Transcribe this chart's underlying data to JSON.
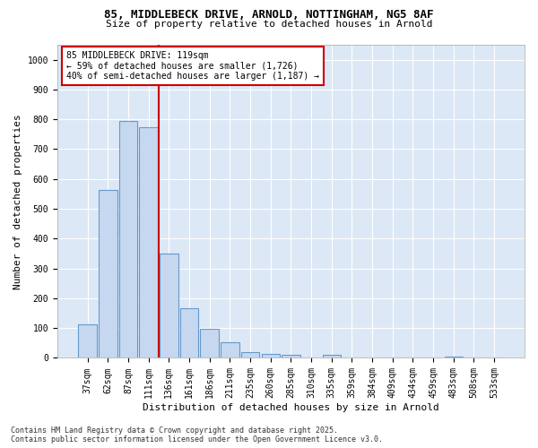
{
  "title_line1": "85, MIDDLEBECK DRIVE, ARNOLD, NOTTINGHAM, NG5 8AF",
  "title_line2": "Size of property relative to detached houses in Arnold",
  "xlabel": "Distribution of detached houses by size in Arnold",
  "ylabel": "Number of detached properties",
  "categories": [
    "37sqm",
    "62sqm",
    "87sqm",
    "111sqm",
    "136sqm",
    "161sqm",
    "186sqm",
    "211sqm",
    "235sqm",
    "260sqm",
    "285sqm",
    "310sqm",
    "335sqm",
    "359sqm",
    "384sqm",
    "409sqm",
    "434sqm",
    "459sqm",
    "483sqm",
    "508sqm",
    "533sqm"
  ],
  "values": [
    112,
    562,
    795,
    775,
    350,
    168,
    98,
    52,
    18,
    12,
    10,
    0,
    10,
    0,
    0,
    0,
    0,
    0,
    5,
    0,
    0
  ],
  "bar_color": "#c6d8f0",
  "bar_edge_color": "#6699cc",
  "vline_x_idx": 3.5,
  "vline_color": "#cc0000",
  "annotation_text": "85 MIDDLEBECK DRIVE: 119sqm\n← 59% of detached houses are smaller (1,726)\n40% of semi-detached houses are larger (1,187) →",
  "annotation_box_facecolor": "#ffffff",
  "annotation_box_edgecolor": "#cc0000",
  "ylim": [
    0,
    1050
  ],
  "yticks": [
    0,
    100,
    200,
    300,
    400,
    500,
    600,
    700,
    800,
    900,
    1000
  ],
  "figure_bg_color": "#ffffff",
  "plot_bg_color": "#dce8f5",
  "grid_color": "#ffffff",
  "footer_line1": "Contains HM Land Registry data © Crown copyright and database right 2025.",
  "footer_line2": "Contains public sector information licensed under the Open Government Licence v3.0.",
  "title_fontsize": 9,
  "subtitle_fontsize": 8,
  "tick_fontsize": 7,
  "ylabel_fontsize": 8,
  "xlabel_fontsize": 8,
  "annotation_fontsize": 7,
  "footer_fontsize": 6
}
